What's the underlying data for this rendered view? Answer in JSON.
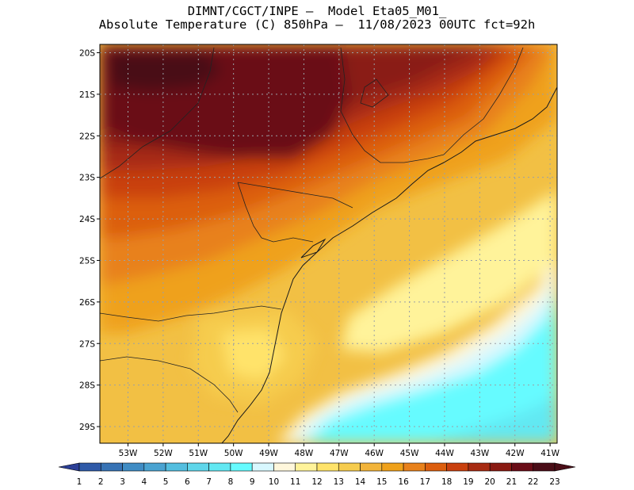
{
  "title": {
    "line1": "DIMNT/CGCT/INPE –  Model Eta05_M01_",
    "line2": "Absolute Temperature (C) 850hPa –  11/08/2023 00UTC fct=92h"
  },
  "map": {
    "lat_labels": [
      "20S",
      "21S",
      "22S",
      "23S",
      "24S",
      "25S",
      "26S",
      "27S",
      "28S",
      "29S"
    ],
    "lon_labels": [
      "53W",
      "52W",
      "51W",
      "50W",
      "49W",
      "48W",
      "47W",
      "46W",
      "45W",
      "44W",
      "43W",
      "42W",
      "41W"
    ],
    "lat_range": [
      -29.4,
      -19.8
    ],
    "lon_range": [
      -53.8,
      -40.8
    ],
    "grid": "dotted"
  },
  "colorbar": {
    "labels": [
      "1",
      "2",
      "3",
      "4",
      "5",
      "6",
      "7",
      "8",
      "9",
      "10",
      "11",
      "12",
      "13",
      "14",
      "15",
      "16",
      "17",
      "18",
      "19",
      "20",
      "21",
      "22",
      "23"
    ],
    "colors": [
      "#2b3f96",
      "#2f5aa8",
      "#3773b5",
      "#3f8cc4",
      "#4aa3d1",
      "#53bedf",
      "#5fd6ea",
      "#62e8f2",
      "#66fbff",
      "#d8f8ff",
      "#fff7dc",
      "#fff39a",
      "#ffe36a",
      "#f6cc4e",
      "#f2b43a",
      "#efa11a",
      "#e8811b",
      "#dc5e0e",
      "#c9400e",
      "#a72b12",
      "#8a1a12",
      "#6a0d17",
      "#4a0d17"
    ]
  }
}
